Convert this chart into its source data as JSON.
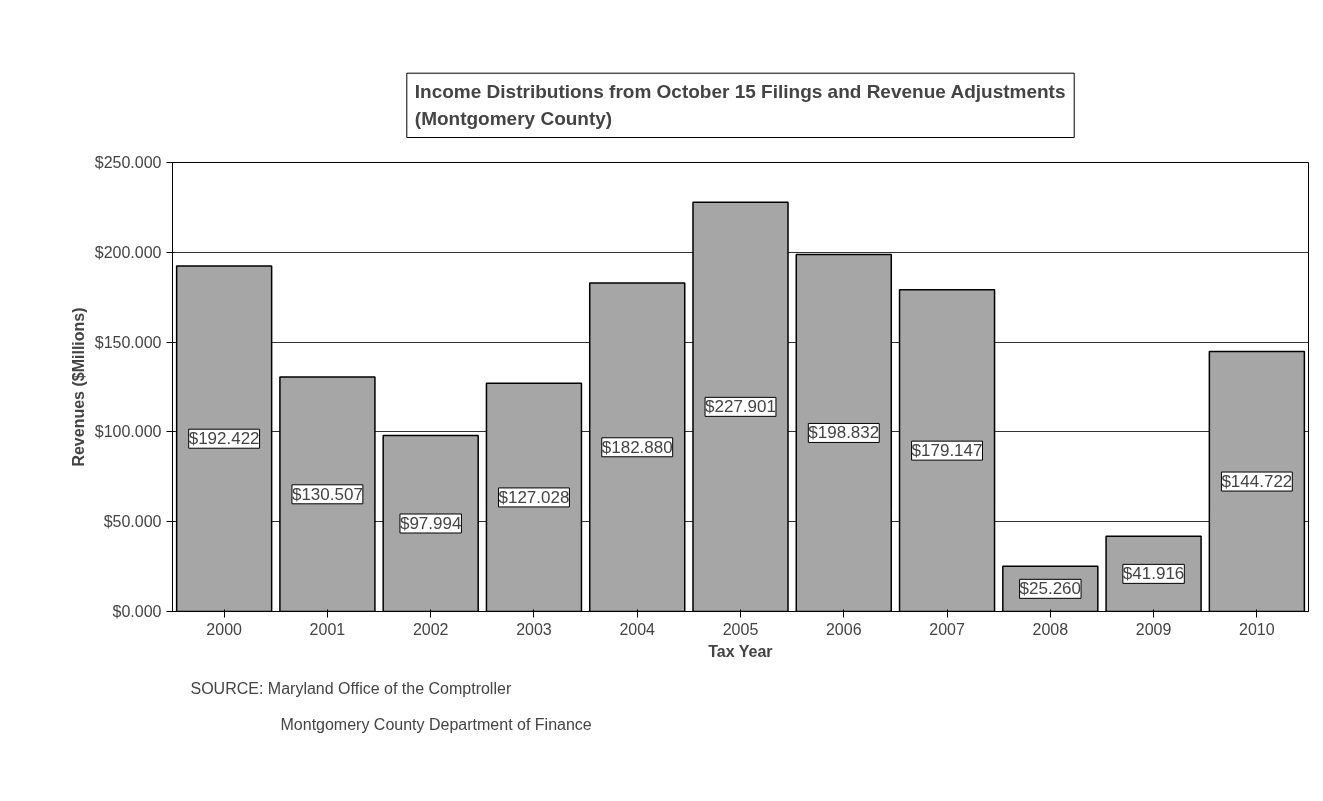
{
  "chart_data": {
    "type": "bar",
    "title": "Income Distributions from October 15 Filings and Revenue Adjustments\n(Montgomery County)",
    "xlabel": "Tax Year",
    "ylabel": "Revenues ($Millions)",
    "categories": [
      "2000",
      "2001",
      "2002",
      "2003",
      "2004",
      "2005",
      "2006",
      "2007",
      "2008",
      "2009",
      "2010"
    ],
    "values": [
      192.422,
      130.507,
      97.994,
      127.028,
      182.88,
      227.901,
      198.832,
      179.147,
      25.26,
      41.916,
      144.722
    ],
    "value_labels": [
      "$192.422",
      "$130.507",
      "$97.994",
      "$127.028",
      "$182.880",
      "$227.901",
      "$198.832",
      "$179.147",
      "$25.260",
      "$41.916",
      "$144.722"
    ],
    "color": "#a6a6a6",
    "ylim": [
      0,
      250
    ],
    "yticks": [
      {
        "value": 0,
        "label": "$0.000"
      },
      {
        "value": 50,
        "label": "$50.000"
      },
      {
        "value": 100,
        "label": "$100.000"
      },
      {
        "value": 150,
        "label": "$150.000"
      },
      {
        "value": 200,
        "label": "$200.000"
      },
      {
        "value": 250,
        "label": "$250.000"
      }
    ],
    "grid": "y",
    "annotations": [
      "SOURCE:  Maryland Office of the Comptroller",
      "Montgomery County Department of Finance"
    ]
  }
}
